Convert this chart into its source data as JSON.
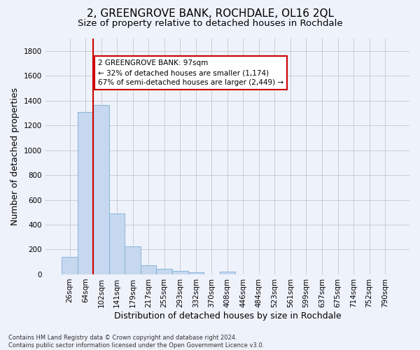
{
  "title": "2, GREENGROVE BANK, ROCHDALE, OL16 2QL",
  "subtitle": "Size of property relative to detached houses in Rochdale",
  "xlabel": "Distribution of detached houses by size in Rochdale",
  "ylabel": "Number of detached properties",
  "footer_line1": "Contains HM Land Registry data © Crown copyright and database right 2024.",
  "footer_line2": "Contains public sector information licensed under the Open Government Licence v3.0.",
  "bar_labels": [
    "26sqm",
    "64sqm",
    "102sqm",
    "141sqm",
    "179sqm",
    "217sqm",
    "255sqm",
    "293sqm",
    "332sqm",
    "370sqm",
    "408sqm",
    "446sqm",
    "484sqm",
    "523sqm",
    "561sqm",
    "599sqm",
    "637sqm",
    "675sqm",
    "714sqm",
    "752sqm",
    "790sqm"
  ],
  "bar_values": [
    140,
    1310,
    1365,
    490,
    225,
    75,
    45,
    28,
    15,
    0,
    20,
    0,
    0,
    0,
    0,
    0,
    0,
    0,
    0,
    0,
    0
  ],
  "bar_color": "#c6d8ef",
  "bar_edge_color": "#7bafd4",
  "vline_x_index": 2,
  "vline_color": "#cc0000",
  "annotation_text": "2 GREENGROVE BANK: 97sqm\n← 32% of detached houses are smaller (1,174)\n67% of semi-detached houses are larger (2,449) →",
  "annotation_box_color": "#ffffff",
  "annotation_box_edge_color": "#cc0000",
  "ylim": [
    0,
    1900
  ],
  "yticks": [
    0,
    200,
    400,
    600,
    800,
    1000,
    1200,
    1400,
    1600,
    1800
  ],
  "grid_color": "#cccccc",
  "background_color": "#eef2fa",
  "title_fontsize": 11,
  "subtitle_fontsize": 9.5,
  "tick_fontsize": 7.5,
  "ylabel_fontsize": 9,
  "xlabel_fontsize": 9,
  "annotation_fontsize": 7.5,
  "footer_fontsize": 6
}
